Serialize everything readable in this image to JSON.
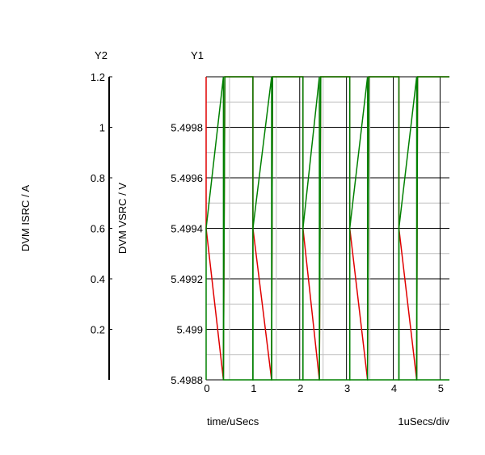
{
  "chart_data": {
    "type": "line",
    "x_label": "time/uSecs",
    "x_scale_label": "1uSecs/div",
    "x_range": [
      0,
      5.2
    ],
    "x_ticks": [
      "0",
      "1",
      "2",
      "3",
      "4",
      "5"
    ],
    "y1": {
      "axis_name": "Y1",
      "label": "DVM VSRC / V",
      "range": [
        5.4988,
        5.5
      ],
      "ticks": [
        "5.4988",
        "5.499",
        "5.4992",
        "5.4994",
        "5.4996",
        "5.4998"
      ],
      "grid_minor_step": 0.0001
    },
    "y2": {
      "axis_name": "Y2",
      "label": "DVM ISRC / A",
      "range": [
        0,
        1.2
      ],
      "ticks": [
        "0.2",
        "0.4",
        "0.6",
        "0.8",
        "1",
        "1.2"
      ]
    },
    "series": [
      {
        "color": "#e00000",
        "axis": "y1",
        "points": [
          [
            0,
            5.5
          ],
          [
            0,
            5.4994
          ],
          [
            0.37,
            5.4988
          ],
          [
            0.37,
            5.4988
          ],
          [
            0.4,
            5.5
          ],
          [
            1.0,
            5.5
          ],
          [
            1.0,
            5.4994
          ],
          [
            1.4,
            5.4988
          ],
          [
            1.42,
            5.5
          ],
          [
            2.07,
            5.5
          ],
          [
            2.07,
            5.4994
          ],
          [
            2.42,
            5.4988
          ],
          [
            2.45,
            5.5
          ],
          [
            3.07,
            5.5
          ],
          [
            3.07,
            5.4994
          ],
          [
            3.45,
            5.4988
          ],
          [
            3.48,
            5.5
          ],
          [
            4.12,
            5.5
          ],
          [
            4.12,
            5.4994
          ],
          [
            4.5,
            5.4988
          ],
          [
            4.52,
            5.5
          ],
          [
            5.2,
            5.5
          ]
        ]
      },
      {
        "color": "#008000",
        "axis": "y2",
        "points": [
          [
            0,
            0
          ],
          [
            0,
            0.6
          ],
          [
            0.37,
            1.2
          ],
          [
            0.37,
            0
          ],
          [
            1.0,
            0
          ],
          [
            1.0,
            0.6
          ],
          [
            1.4,
            1.2
          ],
          [
            1.4,
            0
          ],
          [
            2.07,
            0
          ],
          [
            2.07,
            0.6
          ],
          [
            2.42,
            1.2
          ],
          [
            2.42,
            0
          ],
          [
            3.07,
            0
          ],
          [
            3.07,
            0.6
          ],
          [
            3.45,
            1.2
          ],
          [
            3.45,
            0
          ],
          [
            4.12,
            0
          ],
          [
            4.12,
            0.6
          ],
          [
            4.5,
            1.2
          ],
          [
            4.5,
            0
          ],
          [
            5.2,
            0
          ]
        ]
      },
      {
        "color": "#008000",
        "axis": "y2",
        "points": [
          [
            0.37,
            0
          ],
          [
            0.4,
            1.2
          ],
          [
            1.0,
            1.2
          ],
          [
            1.0,
            0
          ],
          [
            1.4,
            0
          ],
          [
            1.42,
            1.2
          ],
          [
            2.07,
            1.2
          ],
          [
            2.07,
            0
          ],
          [
            2.42,
            0
          ],
          [
            2.45,
            1.2
          ],
          [
            3.07,
            1.2
          ],
          [
            3.07,
            0
          ],
          [
            3.45,
            0
          ],
          [
            3.48,
            1.2
          ],
          [
            4.12,
            1.2
          ],
          [
            4.12,
            0
          ],
          [
            4.5,
            0
          ],
          [
            4.52,
            1.2
          ],
          [
            5.2,
            1.2
          ]
        ]
      }
    ],
    "grid": true
  }
}
